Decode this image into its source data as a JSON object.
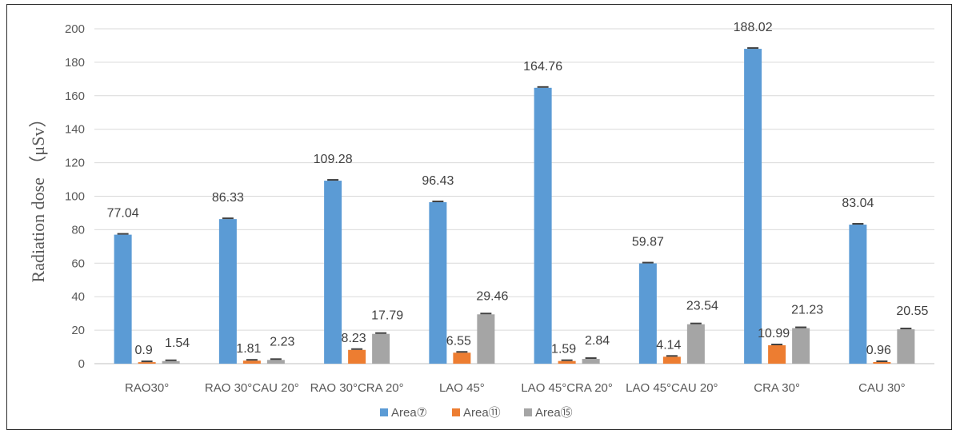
{
  "chart_data": {
    "type": "bar",
    "ylabel": "Radiation dose （μSv）",
    "ylim": [
      0,
      200
    ],
    "yticks": [
      0,
      20,
      40,
      60,
      80,
      100,
      120,
      140,
      160,
      180,
      200
    ],
    "grid": true,
    "legend_position": "bottom",
    "categories": [
      "RAO30°",
      "RAO 30°CAU 20°",
      "RAO 30°CRA 20°",
      "LAO 45°",
      "LAO 45°CRA 20°",
      "LAO 45°CAU 20°",
      "CRA 30°",
      "CAU 30°"
    ],
    "series": [
      {
        "name": "Area⑦",
        "color": "#5b9bd5",
        "values": [
          77.04,
          86.33,
          109.28,
          96.43,
          164.76,
          59.87,
          188.02,
          83.04
        ],
        "labels": [
          "77.04",
          "86.33",
          "109.28",
          "96.43",
          "164.76",
          "59.87",
          "188.02",
          "83.04"
        ]
      },
      {
        "name": "Area⑪",
        "color": "#ed7d31",
        "values": [
          0.9,
          1.81,
          8.23,
          6.55,
          1.59,
          4.14,
          10.99,
          0.96
        ],
        "labels": [
          "0.9",
          "1.81",
          "8.23",
          "6.55",
          "1.59",
          "4.14",
          "10.99",
          "0.96"
        ]
      },
      {
        "name": "Area⑮",
        "color": "#a5a5a5",
        "values": [
          1.54,
          2.23,
          17.79,
          29.46,
          2.84,
          23.54,
          21.23,
          20.55
        ],
        "labels": [
          "1.54",
          "2.23",
          "17.79",
          "29.46",
          "2.84",
          "23.54",
          "21.23",
          "20.55"
        ]
      }
    ]
  }
}
